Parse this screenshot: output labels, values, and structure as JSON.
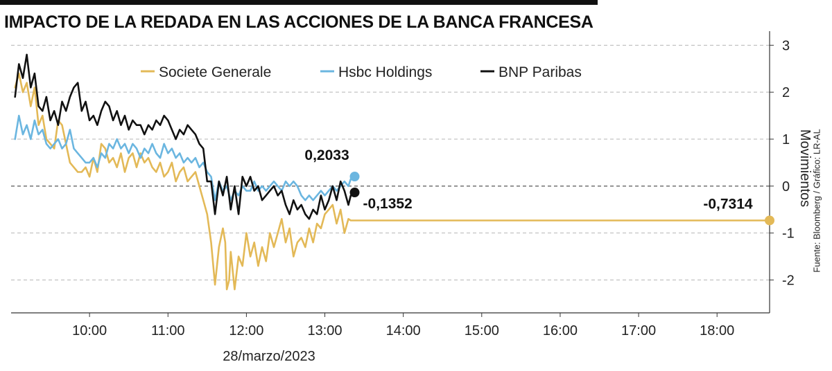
{
  "title": "IMPACTO DE LA REDADA EN LAS ACCIONES DE LA BANCA FRANCESA",
  "source": "Fuente: Bloomberg  / Gráfico: LR-AL",
  "chart_data": {
    "type": "line",
    "xlabel": "28/marzo/2023",
    "ylabel": "Movimientos",
    "x_ticks": [
      "10:00",
      "11:00",
      "12:00",
      "13:00",
      "14:00",
      "15:00",
      "16:00",
      "17:00",
      "18:00"
    ],
    "xlim": [
      9.0,
      18.67
    ],
    "ylim": [
      -2.7,
      3.3
    ],
    "y_ticks": [
      3,
      2,
      1,
      0,
      -1,
      -2
    ],
    "y_tick_labels": [
      "3",
      "2",
      "1",
      "0",
      "-1",
      "-2"
    ],
    "grid": "horizontal dashed",
    "zero_line": "dashed",
    "legend_position": "top",
    "colors": {
      "societe": "#e3b957",
      "hsbc": "#6bb6e0",
      "bnp": "#111111"
    },
    "series": [
      {
        "name": "Societe Generale",
        "color": "#e3b957",
        "end_label": "-0,7314",
        "end_point": [
          18.67,
          -0.7314
        ],
        "x": [
          9.05,
          9.1,
          9.15,
          9.2,
          9.25,
          9.3,
          9.35,
          9.4,
          9.45,
          9.5,
          9.55,
          9.6,
          9.65,
          9.7,
          9.75,
          9.8,
          9.85,
          9.9,
          9.95,
          10.0,
          10.05,
          10.1,
          10.15,
          10.2,
          10.25,
          10.3,
          10.35,
          10.4,
          10.45,
          10.5,
          10.55,
          10.6,
          10.65,
          10.7,
          10.75,
          10.8,
          10.85,
          10.9,
          10.95,
          11.0,
          11.05,
          11.1,
          11.15,
          11.2,
          11.25,
          11.3,
          11.35,
          11.4,
          11.45,
          11.5,
          11.55,
          11.6,
          11.65,
          11.7,
          11.73,
          11.75,
          11.78,
          11.8,
          11.85,
          11.9,
          11.95,
          12.0,
          12.05,
          12.1,
          12.15,
          12.2,
          12.25,
          12.3,
          12.35,
          12.4,
          12.45,
          12.5,
          12.55,
          12.6,
          12.65,
          12.7,
          12.75,
          12.8,
          12.85,
          12.9,
          12.95,
          13.0,
          13.05,
          13.1,
          13.15,
          13.2,
          13.25,
          13.3,
          13.33,
          13.38,
          18.67
        ],
        "values": [
          2.1,
          2.4,
          2.0,
          2.2,
          1.7,
          2.1,
          1.3,
          1.5,
          1.0,
          0.9,
          0.8,
          1.4,
          1.3,
          0.9,
          0.5,
          0.4,
          0.3,
          0.3,
          0.4,
          0.2,
          0.6,
          0.3,
          0.9,
          0.8,
          0.5,
          0.6,
          0.4,
          0.7,
          0.3,
          0.6,
          0.7,
          0.4,
          0.7,
          0.5,
          0.6,
          0.4,
          0.3,
          0.5,
          0.2,
          0.3,
          0.5,
          0.1,
          0.3,
          0.4,
          0.1,
          0.2,
          0.3,
          0.0,
          -0.3,
          -0.6,
          -1.2,
          -2.1,
          -1.3,
          -0.9,
          -1.2,
          -2.2,
          -2.0,
          -1.4,
          -2.2,
          -1.5,
          -1.7,
          -1.0,
          -1.5,
          -1.2,
          -1.7,
          -1.3,
          -1.6,
          -1.0,
          -1.3,
          -1.0,
          -0.7,
          -1.2,
          -0.9,
          -1.5,
          -1.2,
          -1.1,
          -1.3,
          -0.9,
          -1.2,
          -0.8,
          -0.9,
          -0.6,
          -0.5,
          -0.4,
          -0.8,
          -0.5,
          -1.0,
          -0.7,
          -0.7314,
          -0.7314,
          -0.7314
        ]
      },
      {
        "name": "Hsbc Holdings",
        "color": "#6bb6e0",
        "end_label": "0,2033",
        "end_point": [
          13.38,
          0.2033
        ],
        "x": [
          9.05,
          9.1,
          9.15,
          9.2,
          9.25,
          9.3,
          9.35,
          9.4,
          9.45,
          9.5,
          9.55,
          9.6,
          9.65,
          9.7,
          9.75,
          9.8,
          9.85,
          9.9,
          9.95,
          10.0,
          10.05,
          10.1,
          10.15,
          10.2,
          10.25,
          10.3,
          10.35,
          10.4,
          10.45,
          10.5,
          10.55,
          10.6,
          10.65,
          10.7,
          10.75,
          10.8,
          10.85,
          10.9,
          10.95,
          11.0,
          11.05,
          11.1,
          11.15,
          11.2,
          11.25,
          11.3,
          11.35,
          11.4,
          11.45,
          11.5,
          11.55,
          11.6,
          11.65,
          11.7,
          11.75,
          11.8,
          11.85,
          11.9,
          11.95,
          12.0,
          12.05,
          12.1,
          12.15,
          12.2,
          12.25,
          12.3,
          12.35,
          12.4,
          12.45,
          12.5,
          12.55,
          12.6,
          12.65,
          12.7,
          12.75,
          12.8,
          12.85,
          12.9,
          12.95,
          13.0,
          13.05,
          13.1,
          13.15,
          13.2,
          13.25,
          13.3,
          13.33,
          13.38
        ],
        "values": [
          1.0,
          1.5,
          1.1,
          1.3,
          1.0,
          1.4,
          1.1,
          1.2,
          0.9,
          0.8,
          0.9,
          1.0,
          0.8,
          0.9,
          1.2,
          0.8,
          0.7,
          0.6,
          0.5,
          0.5,
          0.6,
          0.4,
          0.7,
          0.6,
          0.9,
          0.8,
          1.0,
          0.8,
          0.9,
          0.7,
          0.9,
          0.8,
          0.6,
          0.8,
          0.7,
          0.9,
          0.7,
          0.6,
          0.9,
          0.7,
          0.8,
          0.6,
          0.7,
          0.5,
          0.6,
          0.5,
          0.6,
          0.4,
          0.5,
          0.3,
          0.2,
          -0.3,
          0.1,
          -0.1,
          0.0,
          -0.3,
          -0.1,
          -0.2,
          0.0,
          -0.1,
          -0.1,
          0.1,
          -0.1,
          0.0,
          -0.1,
          0.0,
          0.1,
          0.0,
          -0.1,
          0.1,
          0.0,
          0.1,
          0.0,
          -0.2,
          -0.3,
          -0.2,
          -0.3,
          -0.2,
          -0.1,
          -0.2,
          -0.1,
          0.0,
          -0.1,
          0.0,
          0.1,
          0.0,
          0.15,
          0.2033
        ]
      },
      {
        "name": "BNP Paribas",
        "color": "#111111",
        "end_label": "-0,1352",
        "end_point": [
          13.38,
          -0.1352
        ],
        "x": [
          9.05,
          9.1,
          9.15,
          9.2,
          9.25,
          9.3,
          9.35,
          9.4,
          9.45,
          9.5,
          9.55,
          9.6,
          9.65,
          9.7,
          9.75,
          9.8,
          9.85,
          9.9,
          9.95,
          10.0,
          10.05,
          10.1,
          10.15,
          10.2,
          10.25,
          10.3,
          10.35,
          10.4,
          10.45,
          10.5,
          10.55,
          10.6,
          10.65,
          10.7,
          10.75,
          10.8,
          10.85,
          10.9,
          10.95,
          11.0,
          11.05,
          11.1,
          11.15,
          11.2,
          11.25,
          11.3,
          11.35,
          11.4,
          11.45,
          11.5,
          11.55,
          11.6,
          11.65,
          11.7,
          11.75,
          11.8,
          11.85,
          11.9,
          11.95,
          12.0,
          12.05,
          12.1,
          12.15,
          12.2,
          12.25,
          12.3,
          12.35,
          12.4,
          12.45,
          12.5,
          12.55,
          12.6,
          12.65,
          12.7,
          12.75,
          12.8,
          12.85,
          12.9,
          12.95,
          13.0,
          13.05,
          13.1,
          13.15,
          13.2,
          13.25,
          13.3,
          13.33,
          13.38
        ],
        "values": [
          1.9,
          2.6,
          2.3,
          2.8,
          2.1,
          2.4,
          1.7,
          1.6,
          1.9,
          1.4,
          1.6,
          1.3,
          1.8,
          1.6,
          1.9,
          2.1,
          2.2,
          1.6,
          1.8,
          1.4,
          1.5,
          1.3,
          1.6,
          1.8,
          1.7,
          1.4,
          1.6,
          1.3,
          1.5,
          1.2,
          1.4,
          1.3,
          1.3,
          1.1,
          1.3,
          1.2,
          1.4,
          1.3,
          1.5,
          1.4,
          1.2,
          1.0,
          1.2,
          1.1,
          1.3,
          1.2,
          1.1,
          0.9,
          0.8,
          0.1,
          0.1,
          -0.6,
          0.1,
          -0.2,
          0.2,
          -0.5,
          0.0,
          -0.6,
          0.2,
          0.0,
          0.2,
          -0.1,
          0.0,
          -0.3,
          -0.2,
          -0.1,
          0.0,
          -0.2,
          -0.1,
          -0.4,
          -0.6,
          -0.3,
          -0.5,
          -0.4,
          -0.6,
          -0.7,
          -0.5,
          -0.6,
          -0.2,
          -0.5,
          -0.3,
          0.0,
          -0.3,
          0.1,
          -0.1,
          -0.4,
          -0.2,
          -0.1352
        ]
      }
    ]
  }
}
